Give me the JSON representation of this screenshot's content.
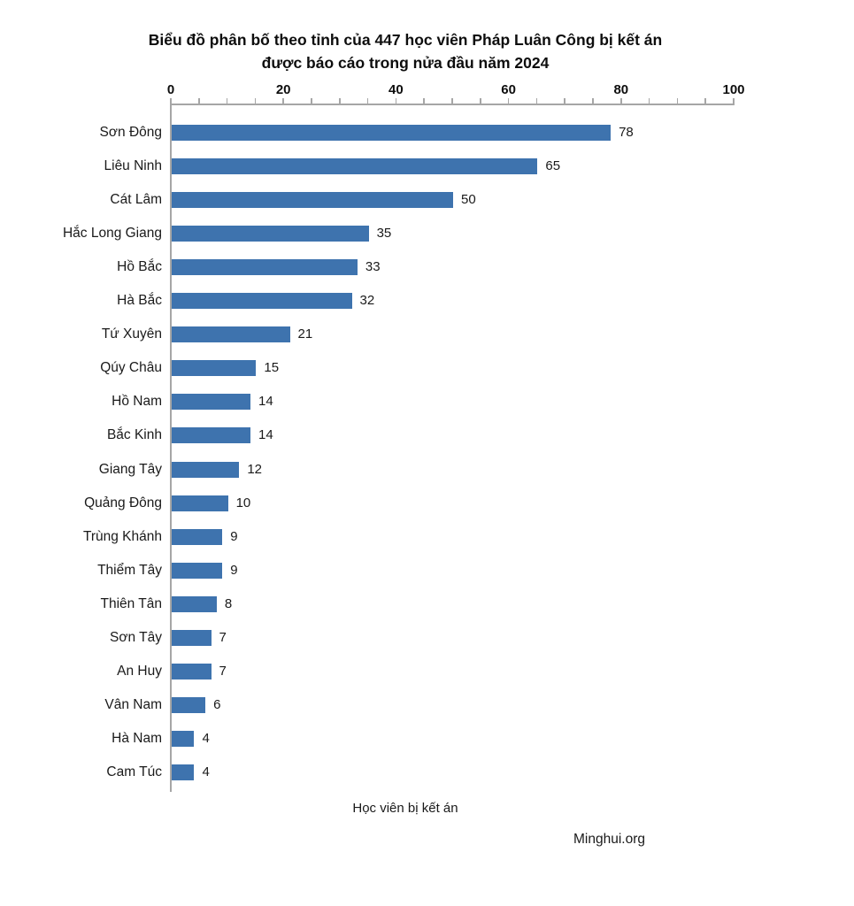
{
  "chart_data": {
    "type": "bar",
    "orientation": "horizontal",
    "title_line1": "Biểu đồ phân bố theo tỉnh của 447 học viên Pháp Luân Công bị kết án",
    "title_line2": "được báo cáo trong nửa đầu năm 2024",
    "categories": [
      "Sơn Đông",
      "Liêu Ninh",
      "Cát Lâm",
      "Hắc Long Giang",
      "Hồ Bắc",
      "Hà Bắc",
      "Tứ Xuyên",
      "Qúy Châu",
      "Hồ Nam",
      "Bắc Kinh",
      "Giang Tây",
      "Quảng Đông",
      "Trùng Khánh",
      "Thiểm Tây",
      "Thiên Tân",
      "Sơn Tây",
      "An Huy",
      "Vân Nam",
      "Hà Nam",
      "Cam Túc"
    ],
    "values": [
      78,
      65,
      50,
      35,
      33,
      32,
      21,
      15,
      14,
      14,
      12,
      10,
      9,
      9,
      8,
      7,
      7,
      6,
      4,
      4
    ],
    "xlabel": "Học viên bị kết án",
    "source": "Minghui.org",
    "xlim": [
      0,
      100
    ],
    "xticks": [
      0,
      20,
      40,
      60,
      80,
      100
    ],
    "minor_tick_step": 5,
    "grid": false,
    "legend": "none",
    "bar_color": "#3E73AE",
    "axis_color": "#A6A6A6"
  }
}
